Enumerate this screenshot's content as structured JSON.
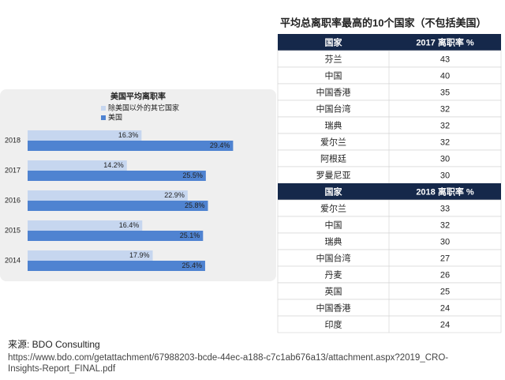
{
  "chart_data": {
    "type": "bar",
    "orientation": "horizontal",
    "title": "美国平均离职率",
    "categories": [
      "2018",
      "2017",
      "2016",
      "2015",
      "2014"
    ],
    "series": [
      {
        "name": "除美国以外的其它国家",
        "color": "#c6d6ef",
        "values": [
          16.3,
          14.2,
          22.9,
          16.4,
          17.9
        ],
        "value_labels": [
          "16.3%",
          "14.2%",
          "22.9%",
          "16.4%",
          "17.9%"
        ]
      },
      {
        "name": "美国",
        "color": "#4f83d1",
        "values": [
          29.4,
          25.5,
          25.8,
          25.1,
          25.4
        ],
        "value_labels": [
          "29.4%",
          "25.5%",
          "25.8%",
          "25.1%",
          "25.4%"
        ]
      }
    ],
    "xlim": [
      0,
      35
    ],
    "grid": false
  },
  "table_title": "平均总离职率最高的10个国家（不包括美国）",
  "tables": [
    {
      "header": [
        "国家",
        "2017 离职率 %"
      ],
      "rows": [
        [
          "芬兰",
          43
        ],
        [
          "中国",
          40
        ],
        [
          "中国香港",
          35
        ],
        [
          "中国台湾",
          32
        ],
        [
          "瑞典",
          32
        ],
        [
          "爱尔兰",
          32
        ],
        [
          "阿根廷",
          30
        ],
        [
          "罗曼尼亚",
          30
        ]
      ]
    },
    {
      "header": [
        "国家",
        "2018 离职率 %"
      ],
      "rows": [
        [
          "爱尔兰",
          33
        ],
        [
          "中国",
          32
        ],
        [
          "瑞典",
          30
        ],
        [
          "中国台湾",
          27
        ],
        [
          "丹麦",
          26
        ],
        [
          "英国",
          25
        ],
        [
          "中国香港",
          24
        ],
        [
          "印度",
          24
        ]
      ]
    }
  ],
  "source": {
    "label": "来源: BDO Consulting",
    "url": [
      "https://www.bdo.com/getattachment/67988203-bcde-44ec-a188-c7c1ab676a13/attachment.aspx?2019_CRO-",
      "Insights-Report_FINAL.pdf"
    ]
  }
}
